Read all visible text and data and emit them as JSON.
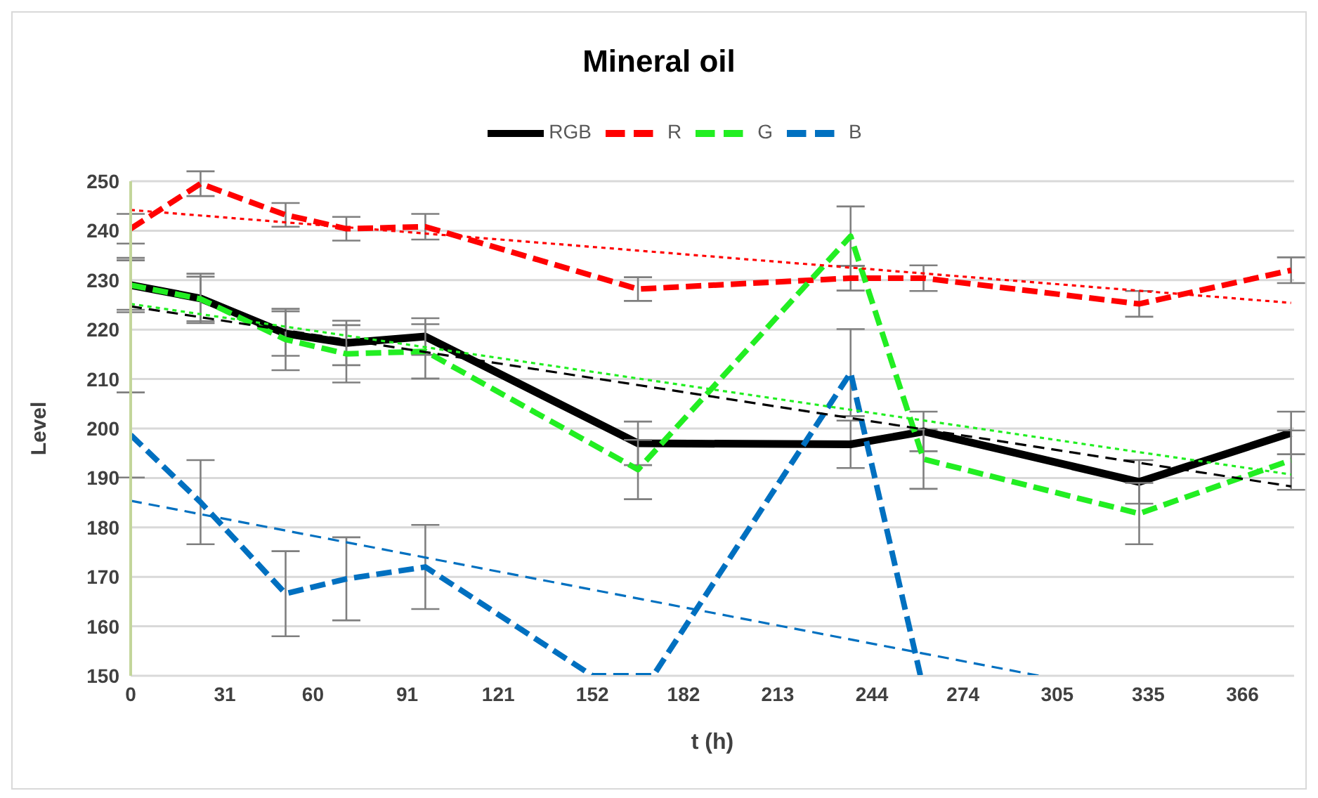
{
  "chart_data": {
    "type": "line",
    "title": "Mineral oil",
    "xlabel": "t (h)",
    "ylabel": "Level",
    "x": [
      0,
      23,
      51,
      71,
      97,
      167,
      237,
      261,
      332,
      382
    ],
    "xlim": [
      0,
      383
    ],
    "xticks": [
      0,
      31,
      60,
      91,
      121,
      152,
      182,
      213,
      244,
      274,
      305,
      335,
      366
    ],
    "ylim": [
      150,
      250
    ],
    "yticks": [
      150,
      160,
      170,
      180,
      190,
      200,
      210,
      220,
      230,
      240,
      250
    ],
    "grid": "y",
    "legend": "top",
    "marker": "none",
    "series": [
      {
        "name": "RGB",
        "color": "#000000",
        "line_style": "solid",
        "values": [
          229,
          226.3,
          219.2,
          217.3,
          218.6,
          197,
          196.8,
          199.4,
          189.2,
          199.1
        ],
        "errors": [
          5,
          5,
          4.5,
          4.5,
          3.7,
          4.4,
          4.8,
          4,
          4.4,
          4.3
        ]
      },
      {
        "name": "R",
        "color": "#ff0000",
        "line_style": "dashed",
        "values": [
          240.4,
          249.5,
          243.2,
          240.4,
          240.8,
          228.2,
          230.4,
          230.4,
          225.2,
          232
        ],
        "errors": [
          3,
          2.5,
          2.4,
          2.4,
          2.6,
          2.4,
          2.5,
          2.6,
          2.6,
          2.6
        ]
      },
      {
        "name": "G",
        "color": "#22ee22",
        "line_style": "dashed",
        "values": [
          229,
          226.2,
          218,
          215.1,
          215.6,
          191.7,
          238.9,
          193.8,
          182.8,
          193.6
        ],
        "errors": [
          5.5,
          4.5,
          6.2,
          5.8,
          5.5,
          6,
          6,
          6,
          6.2,
          6
        ]
      },
      {
        "name": "B",
        "color": "#0070c0",
        "line_style": "dashed",
        "x": [
          0,
          23,
          51,
          71,
          97,
          152,
          172,
          237,
          260
        ],
        "values": [
          198.7,
          185.1,
          166.6,
          169.6,
          172,
          150,
          150,
          211.3,
          150
        ],
        "errors": [
          8.6,
          8.5,
          8.6,
          8.4,
          8.5,
          null,
          null,
          8.8,
          null
        ]
      },
      {
        "color": "#000000",
        "line_style": "dashed",
        "x": [
          0,
          382
        ],
        "values": [
          224.7,
          188.3
        ]
      },
      {
        "color": "#ff0000",
        "line_style": "dotted",
        "x": [
          0,
          382
        ],
        "values": [
          244.2,
          225.4
        ]
      },
      {
        "color": "#22ee22",
        "line_style": "dotted",
        "x": [
          0,
          382
        ],
        "values": [
          225.2,
          190.7
        ]
      },
      {
        "color": "#0070c0",
        "line_style": "dashed",
        "x": [
          0,
          299
        ],
        "values": [
          185.4,
          150
        ]
      }
    ]
  }
}
